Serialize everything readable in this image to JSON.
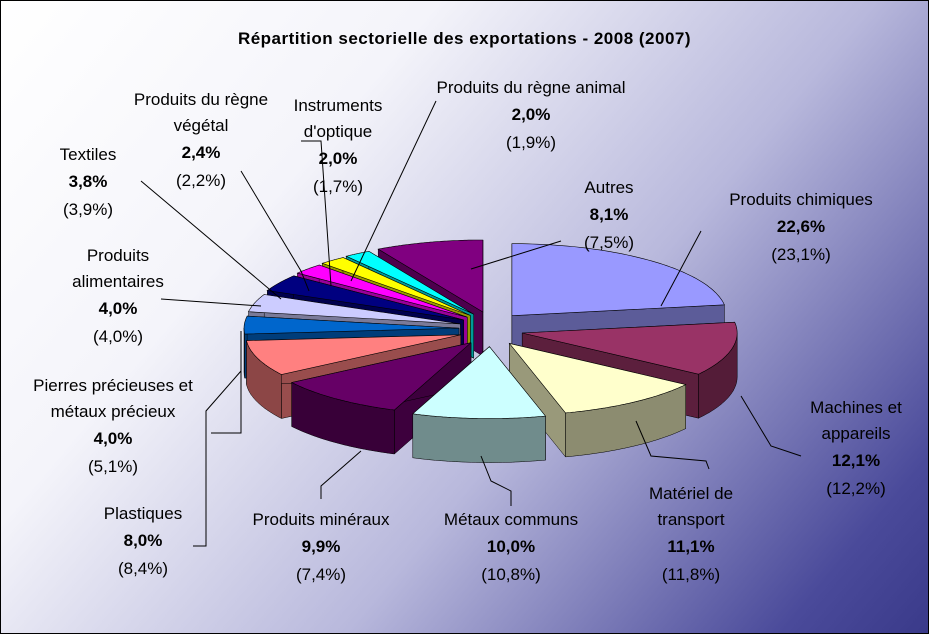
{
  "chart_data": {
    "type": "pie3d",
    "title": "Répartition sectorielle des exportations - 2008 (2007)",
    "categories": [
      "Produits chimiques",
      "Machines et appareils",
      "Matériel de transport",
      "Métaux communs",
      "Produits minéraux",
      "Plastiques",
      "Pierres précieuses et métaux précieux",
      "Produits alimentaires",
      "Textiles",
      "Produits du règne végétal",
      "Instruments d'optique",
      "Produits du règne animal",
      "Autres"
    ],
    "values": [
      22.6,
      12.1,
      11.1,
      10.0,
      9.9,
      8.0,
      4.0,
      4.0,
      3.8,
      2.4,
      2.0,
      2.0,
      8.1
    ],
    "value_labels": [
      "22,6%",
      "12,1%",
      "11,1%",
      "10,0%",
      "9,9%",
      "8,0%",
      "4,0%",
      "4,0%",
      "3,8%",
      "2,4%",
      "2,0%",
      "2,0%",
      "8,1%"
    ],
    "values_2007": [
      23.1,
      12.2,
      11.8,
      10.8,
      7.4,
      8.4,
      5.1,
      4.0,
      3.9,
      2.2,
      1.7,
      1.9,
      7.5
    ],
    "value_labels_2007": [
      "(23,1%)",
      "(12,2%)",
      "(11,8%)",
      "(10,8%)",
      "(7,4%)",
      "(8,4%)",
      "(5,1%)",
      "(4,0%)",
      "(3,9%)",
      "(2,2%)",
      "(1,7%)",
      "(1,9%)",
      "(7,5%)"
    ],
    "colors": [
      "#9999ff",
      "#993366",
      "#ffffcc",
      "#ccffff",
      "#660066",
      "#ff8080",
      "#0066cc",
      "#ccccff",
      "#000080",
      "#ff00ff",
      "#ffff00",
      "#00ffff",
      "#800080"
    ]
  }
}
